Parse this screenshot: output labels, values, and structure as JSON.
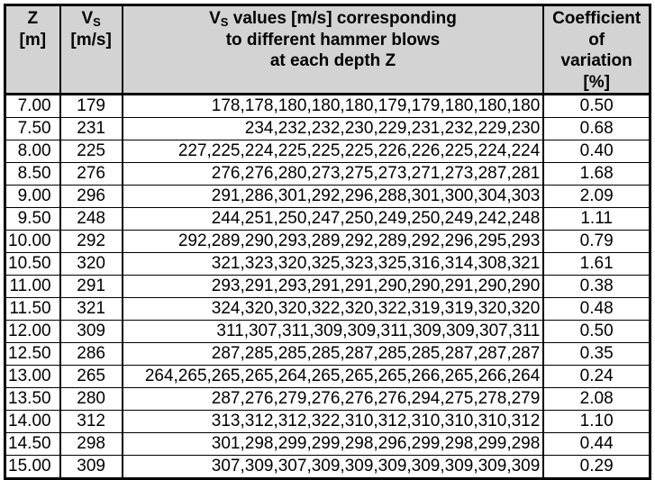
{
  "colors": {
    "header_background": "#d3d3d3",
    "border": "#000000",
    "text": "#000000",
    "row_background": "#ffffff"
  },
  "table": {
    "headers": {
      "z": {
        "line1": "Z",
        "line2": "[m]"
      },
      "vs": {
        "symbol": "V",
        "subscript": "S",
        "unit": "[m/s]"
      },
      "values": {
        "symbol": "V",
        "subscript": "S",
        "line1_rest": " values [m/s] corresponding",
        "line2": "to different hammer blows",
        "line3": "at each depth Z"
      },
      "cov": {
        "line1": "Coefficient",
        "line2": "of",
        "line3": "variation",
        "line4": "[%]"
      }
    },
    "rows": [
      {
        "z": "7.00",
        "vs": "179",
        "values": "178,178,180,180,180,179,179,180,180,180",
        "cov": "0.50"
      },
      {
        "z": "7.50",
        "vs": "231",
        "values": "234,232,232,230,229,231,232,229,230",
        "cov": "0.68"
      },
      {
        "z": "8.00",
        "vs": "225",
        "values": "227,225,224,225,225,225,226,226,225,224,224",
        "cov": "0.40"
      },
      {
        "z": "8.50",
        "vs": "276",
        "values": "276,276,280,273,275,273,271,273,287,281",
        "cov": "1.68"
      },
      {
        "z": "9.00",
        "vs": "296",
        "values": "291,286,301,292,296,288,301,300,304,303",
        "cov": "2.09"
      },
      {
        "z": "9.50",
        "vs": "248",
        "values": "244,251,250,247,250,249,250,249,242,248",
        "cov": "1.11"
      },
      {
        "z": "10.00",
        "vs": "292",
        "values": "292,289,290,293,289,292,289,292,296,295,293",
        "cov": "0.79"
      },
      {
        "z": "10.50",
        "vs": "320",
        "values": "321,323,320,325,323,325,316,314,308,321",
        "cov": "1.61"
      },
      {
        "z": "11.00",
        "vs": "291",
        "values": "293,291,293,291,291,290,290,291,290,290",
        "cov": "0.38"
      },
      {
        "z": "11.50",
        "vs": "321",
        "values": "324,320,320,322,320,322,319,319,320,320",
        "cov": "0.48"
      },
      {
        "z": "12.00",
        "vs": "309",
        "values": "311,307,311,309,309,311,309,309,307,311",
        "cov": "0.50"
      },
      {
        "z": "12.50",
        "vs": "286",
        "values": "287,285,285,285,287,285,285,287,287,287",
        "cov": "0.35"
      },
      {
        "z": "13.00",
        "vs": "265",
        "values": "264,265,265,265,264,265,265,265,266,265,266,264",
        "cov": "0.24"
      },
      {
        "z": "13.50",
        "vs": "280",
        "values": "287,276,279,276,276,276,294,275,278,279",
        "cov": "2.08"
      },
      {
        "z": "14.00",
        "vs": "312",
        "values": "313,312,312,322,310,312,310,310,310,312",
        "cov": "1.10"
      },
      {
        "z": "14.50",
        "vs": "298",
        "values": "301,298,299,299,298,296,299,298,299,298",
        "cov": "0.44"
      },
      {
        "z": "15.00",
        "vs": "309",
        "values": "307,309,307,309,309,309,309,309,309,309",
        "cov": "0.29"
      }
    ]
  },
  "chart_data": {
    "type": "table",
    "title": "Vs values [m/s] corresponding to different hammer blows at each depth Z",
    "columns": [
      "Z [m]",
      "Vs [m/s]",
      "Vs values [m/s] corresponding to different hammer blows at each depth Z",
      "Coefficient of variation [%]"
    ],
    "rows": [
      [
        7.0,
        179,
        [
          178,
          178,
          180,
          180,
          180,
          179,
          179,
          180,
          180,
          180
        ],
        0.5
      ],
      [
        7.5,
        231,
        [
          234,
          232,
          232,
          230,
          229,
          231,
          232,
          229,
          230
        ],
        0.68
      ],
      [
        8.0,
        225,
        [
          227,
          225,
          224,
          225,
          225,
          225,
          226,
          226,
          225,
          224,
          224
        ],
        0.4
      ],
      [
        8.5,
        276,
        [
          276,
          276,
          280,
          273,
          275,
          273,
          271,
          273,
          287,
          281
        ],
        1.68
      ],
      [
        9.0,
        296,
        [
          291,
          286,
          301,
          292,
          296,
          288,
          301,
          300,
          304,
          303
        ],
        2.09
      ],
      [
        9.5,
        248,
        [
          244,
          251,
          250,
          247,
          250,
          249,
          250,
          249,
          242,
          248
        ],
        1.11
      ],
      [
        10.0,
        292,
        [
          292,
          289,
          290,
          293,
          289,
          292,
          289,
          292,
          296,
          295,
          293
        ],
        0.79
      ],
      [
        10.5,
        320,
        [
          321,
          323,
          320,
          325,
          323,
          325,
          316,
          314,
          308,
          321
        ],
        1.61
      ],
      [
        11.0,
        291,
        [
          293,
          291,
          293,
          291,
          291,
          290,
          290,
          291,
          290,
          290
        ],
        0.38
      ],
      [
        11.5,
        321,
        [
          324,
          320,
          320,
          322,
          320,
          322,
          319,
          319,
          320,
          320
        ],
        0.48
      ],
      [
        12.0,
        309,
        [
          311,
          307,
          311,
          309,
          309,
          311,
          309,
          309,
          307,
          311
        ],
        0.5
      ],
      [
        12.5,
        286,
        [
          287,
          285,
          285,
          285,
          287,
          285,
          285,
          287,
          287,
          287
        ],
        0.35
      ],
      [
        13.0,
        265,
        [
          264,
          265,
          265,
          265,
          264,
          265,
          265,
          265,
          266,
          265,
          266,
          264
        ],
        0.24
      ],
      [
        13.5,
        280,
        [
          287,
          276,
          279,
          276,
          276,
          276,
          294,
          275,
          278,
          279
        ],
        2.08
      ],
      [
        14.0,
        312,
        [
          313,
          312,
          312,
          322,
          310,
          312,
          310,
          310,
          310,
          312
        ],
        1.1
      ],
      [
        14.5,
        298,
        [
          301,
          298,
          299,
          299,
          298,
          296,
          299,
          298,
          299,
          298
        ],
        0.44
      ],
      [
        15.0,
        309,
        [
          307,
          309,
          307,
          309,
          309,
          309,
          309,
          309,
          309,
          309
        ],
        0.29
      ]
    ]
  }
}
